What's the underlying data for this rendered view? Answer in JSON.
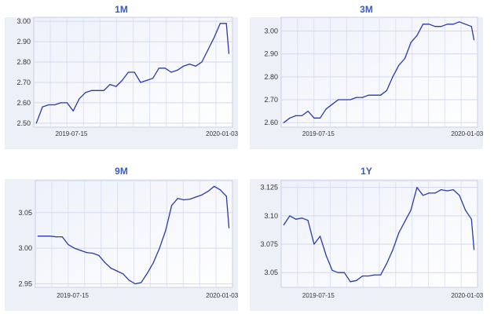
{
  "chart_data": [
    {
      "type": "line",
      "title": "1M",
      "x": [
        "2019-06-05",
        "2019-06-12",
        "2019-06-19",
        "2019-06-26",
        "2019-07-03",
        "2019-07-10",
        "2019-07-17",
        "2019-07-24",
        "2019-07-31",
        "2019-08-07",
        "2019-08-14",
        "2019-08-21",
        "2019-08-28",
        "2019-09-04",
        "2019-09-11",
        "2019-09-18",
        "2019-09-25",
        "2019-10-02",
        "2019-10-09",
        "2019-10-16",
        "2019-10-23",
        "2019-10-30",
        "2019-11-06",
        "2019-11-13",
        "2019-11-20",
        "2019-11-27",
        "2019-12-04",
        "2019-12-11",
        "2019-12-18",
        "2019-12-25",
        "2020-01-01",
        "2020-01-08"
      ],
      "values": [
        2.5,
        2.58,
        2.59,
        2.59,
        2.6,
        2.6,
        2.56,
        2.62,
        2.65,
        2.66,
        2.66,
        2.66,
        2.69,
        2.68,
        2.71,
        2.75,
        2.75,
        2.7,
        2.71,
        2.72,
        2.77,
        2.77,
        2.75,
        2.76,
        2.78,
        2.79,
        2.78,
        2.8,
        2.86,
        2.92,
        2.99,
        2.99
      ],
      "last": 2.84,
      "yticks": [
        "2.50",
        "2.60",
        "2.70",
        "2.80",
        "2.90",
        "3.00"
      ],
      "ylim": [
        2.48,
        3.02
      ],
      "xticks": [
        "2019-07-15",
        "2020-01-03"
      ]
    },
    {
      "type": "line",
      "title": "3M",
      "x": [
        "2019-06-05",
        "2019-06-12",
        "2019-06-19",
        "2019-06-26",
        "2019-07-03",
        "2019-07-10",
        "2019-07-17",
        "2019-07-24",
        "2019-07-31",
        "2019-08-07",
        "2019-08-14",
        "2019-08-21",
        "2019-08-28",
        "2019-09-04",
        "2019-09-11",
        "2019-09-18",
        "2019-09-25",
        "2019-10-02",
        "2019-10-09",
        "2019-10-16",
        "2019-10-23",
        "2019-10-30",
        "2019-11-06",
        "2019-11-13",
        "2019-11-20",
        "2019-11-27",
        "2019-12-04",
        "2019-12-11",
        "2019-12-18",
        "2019-12-25",
        "2020-01-01",
        "2020-01-08"
      ],
      "values": [
        2.6,
        2.62,
        2.63,
        2.63,
        2.65,
        2.62,
        2.62,
        2.66,
        2.68,
        2.7,
        2.7,
        2.7,
        2.71,
        2.71,
        2.72,
        2.72,
        2.72,
        2.74,
        2.8,
        2.85,
        2.88,
        2.95,
        2.98,
        3.03,
        3.03,
        3.02,
        3.02,
        3.03,
        3.03,
        3.04,
        3.03,
        3.02
      ],
      "last": 2.96,
      "yticks": [
        "2.60",
        "2.70",
        "2.80",
        "2.90",
        "3.00"
      ],
      "ylim": [
        2.58,
        3.06
      ],
      "xticks": [
        "2019-07-15",
        "2020-01-03"
      ]
    },
    {
      "type": "line",
      "title": "9M",
      "x": [
        "2019-06-05",
        "2019-06-12",
        "2019-06-19",
        "2019-06-26",
        "2019-07-03",
        "2019-07-10",
        "2019-07-17",
        "2019-07-24",
        "2019-07-31",
        "2019-08-07",
        "2019-08-14",
        "2019-08-21",
        "2019-08-28",
        "2019-09-04",
        "2019-09-11",
        "2019-09-18",
        "2019-09-25",
        "2019-10-02",
        "2019-10-09",
        "2019-10-16",
        "2019-10-23",
        "2019-10-30",
        "2019-11-06",
        "2019-11-13",
        "2019-11-20",
        "2019-11-27",
        "2019-12-04",
        "2019-12-11",
        "2019-12-18",
        "2019-12-25",
        "2020-01-01",
        "2020-01-08"
      ],
      "values": [
        3.017,
        3.017,
        3.017,
        3.016,
        3.016,
        3.005,
        3.0,
        2.997,
        2.994,
        2.993,
        2.99,
        2.98,
        2.972,
        2.968,
        2.964,
        2.955,
        2.95,
        2.952,
        2.965,
        2.98,
        3.0,
        3.025,
        3.06,
        3.07,
        3.068,
        3.069,
        3.072,
        3.075,
        3.08,
        3.087,
        3.082,
        3.073
      ],
      "last": 3.028,
      "yticks": [
        "2.95",
        "3.00",
        "3.05"
      ],
      "ylim": [
        2.945,
        3.095
      ],
      "xticks": [
        "2019-07-15",
        "2020-01-03"
      ]
    },
    {
      "type": "line",
      "title": "1Y",
      "x": [
        "2019-06-05",
        "2019-06-12",
        "2019-06-19",
        "2019-06-26",
        "2019-07-03",
        "2019-07-10",
        "2019-07-17",
        "2019-07-24",
        "2019-07-31",
        "2019-08-07",
        "2019-08-14",
        "2019-08-21",
        "2019-08-28",
        "2019-09-04",
        "2019-09-11",
        "2019-09-18",
        "2019-09-25",
        "2019-10-02",
        "2019-10-09",
        "2019-10-16",
        "2019-10-23",
        "2019-10-30",
        "2019-11-06",
        "2019-11-13",
        "2019-11-20",
        "2019-11-27",
        "2019-12-04",
        "2019-12-11",
        "2019-12-18",
        "2019-12-25",
        "2020-01-01",
        "2020-01-08"
      ],
      "values": [
        3.092,
        3.1,
        3.097,
        3.098,
        3.096,
        3.075,
        3.082,
        3.065,
        3.052,
        3.05,
        3.05,
        3.042,
        3.043,
        3.047,
        3.047,
        3.048,
        3.048,
        3.058,
        3.07,
        3.085,
        3.095,
        3.105,
        3.125,
        3.118,
        3.12,
        3.12,
        3.123,
        3.122,
        3.123,
        3.118,
        3.105,
        3.097
      ],
      "last": 3.07,
      "yticks": [
        "3.05",
        "3.075",
        "3.10",
        "3.125"
      ],
      "ylim": [
        3.037,
        3.131
      ],
      "xticks": [
        "2019-07-15",
        "2020-01-03"
      ]
    }
  ]
}
